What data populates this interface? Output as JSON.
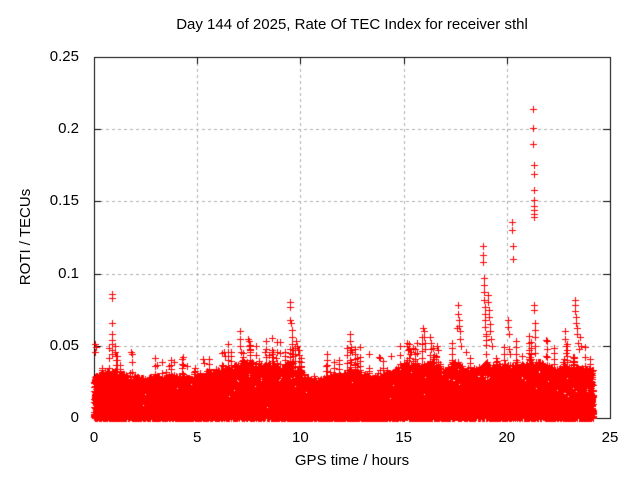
{
  "chart_data": {
    "type": "scatter",
    "title": "Day 144 of 2025, Rate Of TEC Index for receiver sthl",
    "xlabel": "GPS time / hours",
    "ylabel": "ROTI / TECUs",
    "xlim": [
      0,
      25
    ],
    "ylim": [
      0,
      0.25
    ],
    "xticks": [
      0,
      5,
      10,
      15,
      20,
      25
    ],
    "xtick_labels": [
      "0",
      "5",
      "10",
      "15",
      "20",
      "25"
    ],
    "yticks": [
      0,
      0.05,
      0.1,
      0.15,
      0.2,
      0.25
    ],
    "ytick_labels": [
      "0",
      "0.05",
      "0.1",
      "0.15",
      "0.2",
      "0.25"
    ],
    "grid": true,
    "legend": "none",
    "marker": "plus",
    "marker_size_px": 7,
    "colors": {
      "marker": "#ff0000",
      "grid": "#b0b0b0",
      "frame": "#000000",
      "text": "#000000",
      "background": "#ffffff"
    },
    "series": [
      {
        "name": "ROTI",
        "time_start_hours": 0,
        "time_end_hours": 24.2,
        "band_envelope_step_hours": 0.5,
        "band_envelope_tops": [
          0.03,
          0.032,
          0.033,
          0.03,
          0.029,
          0.028,
          0.03,
          0.028,
          0.03,
          0.029,
          0.028,
          0.031,
          0.033,
          0.035,
          0.038,
          0.04,
          0.036,
          0.038,
          0.035,
          0.04,
          0.033,
          0.026,
          0.028,
          0.031,
          0.03,
          0.036,
          0.032,
          0.028,
          0.03,
          0.033,
          0.038,
          0.036,
          0.038,
          0.036,
          0.034,
          0.04,
          0.035,
          0.034,
          0.038,
          0.036,
          0.038,
          0.036,
          0.038,
          0.04,
          0.036,
          0.034,
          0.036,
          0.035,
          0.034
        ],
        "outlier_points": [
          [
            0.07,
            0.051
          ],
          [
            0.07,
            0.046
          ],
          [
            0.12,
            0.049
          ],
          [
            0.85,
            0.086
          ],
          [
            0.85,
            0.083
          ],
          [
            0.85,
            0.066
          ],
          [
            0.85,
            0.058
          ],
          [
            0.85,
            0.054
          ],
          [
            0.85,
            0.051
          ],
          [
            0.87,
            0.047
          ],
          [
            0.87,
            0.044
          ],
          [
            1.0,
            0.05
          ],
          [
            1.0,
            0.046
          ],
          [
            1.05,
            0.043
          ],
          [
            1.8,
            0.046
          ],
          [
            1.85,
            0.044
          ],
          [
            3.05,
            0.037
          ],
          [
            3.9,
            0.039
          ],
          [
            4.5,
            0.036
          ],
          [
            5.3,
            0.041
          ],
          [
            5.35,
            0.038
          ],
          [
            6.3,
            0.046
          ],
          [
            6.35,
            0.043
          ],
          [
            7.05,
            0.06
          ],
          [
            7.05,
            0.055
          ],
          [
            7.08,
            0.05
          ],
          [
            7.1,
            0.046
          ],
          [
            7.45,
            0.055
          ],
          [
            7.5,
            0.053
          ],
          [
            7.52,
            0.05
          ],
          [
            7.55,
            0.048
          ],
          [
            7.58,
            0.046
          ],
          [
            8.3,
            0.046
          ],
          [
            8.6,
            0.044
          ],
          [
            9.5,
            0.08
          ],
          [
            9.5,
            0.077
          ],
          [
            9.52,
            0.068
          ],
          [
            9.55,
            0.066
          ],
          [
            9.58,
            0.061
          ],
          [
            9.6,
            0.056
          ],
          [
            9.6,
            0.051
          ],
          [
            9.63,
            0.047
          ],
          [
            9.65,
            0.043
          ],
          [
            9.8,
            0.053
          ],
          [
            9.85,
            0.05
          ],
          [
            9.88,
            0.047
          ],
          [
            11.3,
            0.04
          ],
          [
            12.4,
            0.058
          ],
          [
            12.4,
            0.053
          ],
          [
            12.45,
            0.049
          ],
          [
            12.5,
            0.046
          ],
          [
            12.9,
            0.049
          ],
          [
            13.3,
            0.044
          ],
          [
            13.8,
            0.042
          ],
          [
            14.4,
            0.043
          ],
          [
            15.15,
            0.052
          ],
          [
            15.18,
            0.05
          ],
          [
            15.2,
            0.047
          ],
          [
            15.25,
            0.051
          ],
          [
            15.28,
            0.048
          ],
          [
            15.3,
            0.044
          ],
          [
            15.35,
            0.046
          ],
          [
            15.95,
            0.062
          ],
          [
            16.0,
            0.06
          ],
          [
            16.0,
            0.056
          ],
          [
            16.05,
            0.052
          ],
          [
            16.05,
            0.048
          ],
          [
            16.3,
            0.056
          ],
          [
            16.35,
            0.052
          ],
          [
            16.35,
            0.048
          ],
          [
            16.6,
            0.05
          ],
          [
            16.65,
            0.047
          ],
          [
            17.6,
            0.062
          ],
          [
            17.63,
            0.078
          ],
          [
            17.65,
            0.072
          ],
          [
            17.68,
            0.068
          ],
          [
            17.7,
            0.064
          ],
          [
            17.73,
            0.06
          ],
          [
            17.75,
            0.055
          ],
          [
            17.8,
            0.05
          ],
          [
            18.0,
            0.046
          ],
          [
            18.85,
            0.119
          ],
          [
            18.85,
            0.113
          ],
          [
            18.85,
            0.108
          ],
          [
            18.88,
            0.097
          ],
          [
            18.88,
            0.092
          ],
          [
            18.9,
            0.087
          ],
          [
            18.9,
            0.082
          ],
          [
            18.93,
            0.077
          ],
          [
            18.93,
            0.072
          ],
          [
            18.95,
            0.068
          ],
          [
            18.95,
            0.063
          ],
          [
            19.0,
            0.058
          ],
          [
            19.0,
            0.054
          ],
          [
            19.1,
            0.085
          ],
          [
            19.1,
            0.08
          ],
          [
            19.15,
            0.075
          ],
          [
            19.15,
            0.07
          ],
          [
            19.2,
            0.065
          ],
          [
            19.2,
            0.06
          ],
          [
            19.25,
            0.055
          ],
          [
            19.3,
            0.05
          ],
          [
            20.05,
            0.068
          ],
          [
            20.05,
            0.063
          ],
          [
            20.1,
            0.058
          ],
          [
            20.12,
            0.048
          ],
          [
            20.15,
            0.044
          ],
          [
            20.25,
            0.136
          ],
          [
            20.25,
            0.13
          ],
          [
            20.3,
            0.119
          ],
          [
            20.3,
            0.11
          ],
          [
            21.27,
            0.214
          ],
          [
            21.27,
            0.201
          ],
          [
            21.27,
            0.19
          ],
          [
            21.3,
            0.175
          ],
          [
            21.3,
            0.169
          ],
          [
            21.3,
            0.158
          ],
          [
            21.3,
            0.151
          ],
          [
            21.32,
            0.147
          ],
          [
            21.32,
            0.144
          ],
          [
            21.32,
            0.141
          ],
          [
            21.32,
            0.139
          ],
          [
            21.33,
            0.078
          ],
          [
            21.33,
            0.075
          ],
          [
            21.35,
            0.066
          ],
          [
            21.35,
            0.061
          ],
          [
            21.35,
            0.056
          ],
          [
            21.35,
            0.05
          ],
          [
            21.35,
            0.045
          ],
          [
            22.8,
            0.06
          ],
          [
            22.8,
            0.055
          ],
          [
            22.85,
            0.05
          ],
          [
            22.85,
            0.045
          ],
          [
            22.9,
            0.04
          ],
          [
            23.3,
            0.082
          ],
          [
            23.3,
            0.078
          ],
          [
            23.3,
            0.074
          ],
          [
            23.35,
            0.07
          ],
          [
            23.35,
            0.066
          ],
          [
            23.4,
            0.062
          ],
          [
            23.4,
            0.058
          ],
          [
            23.45,
            0.052
          ],
          [
            23.5,
            0.048
          ],
          [
            23.55,
            0.056
          ],
          [
            23.6,
            0.05
          ]
        ],
        "generator": {
          "seed": 20250524,
          "step_hours": 0.01,
          "points_per_step": 6,
          "low_bias_exponent": 1.6,
          "tree_probability": 0.045,
          "tree_max_factor": 1.5
        }
      }
    ]
  }
}
